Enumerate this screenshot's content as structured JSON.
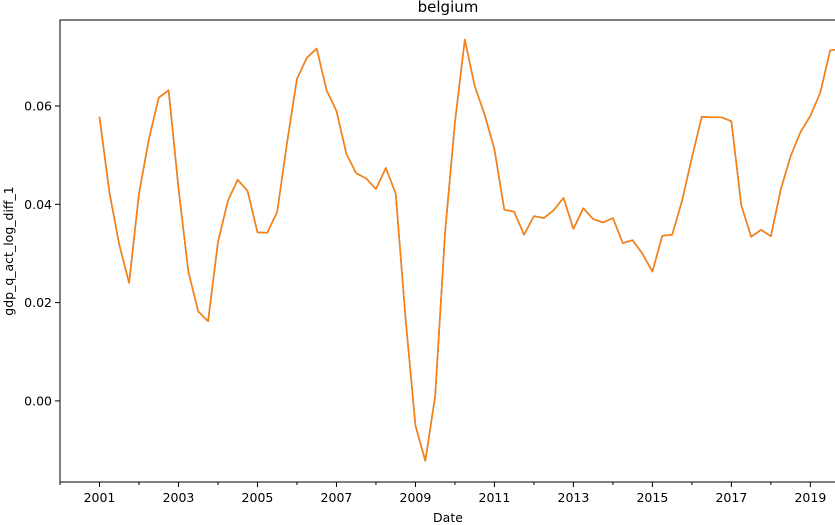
{
  "chart_data": {
    "type": "line",
    "title": "belgium",
    "xlabel": "Date",
    "ylabel": "gdp_q_act_log_diff_1",
    "xlim": [
      2000.0,
      2019.75
    ],
    "ylim": [
      -0.0165,
      0.0775
    ],
    "x_major_ticks": [
      2001,
      2003,
      2005,
      2007,
      2009,
      2011,
      2013,
      2015,
      2017,
      2019
    ],
    "x_major_tick_labels": [
      "2001",
      "2003",
      "2005",
      "2007",
      "2009",
      "2011",
      "2013",
      "2015",
      "2017",
      "2019"
    ],
    "y_ticks": [
      0.0,
      0.02,
      0.04,
      0.06
    ],
    "y_tick_labels": [
      "0.00",
      "0.02",
      "0.04",
      "0.06"
    ],
    "grid": false,
    "legend": "none",
    "series": [
      {
        "color": "#ff7f0e",
        "underlay_color": "#1f77b4",
        "x": [
          2001.0,
          2001.25,
          2001.5,
          2001.75,
          2002.0,
          2002.25,
          2002.5,
          2002.75,
          2003.0,
          2003.25,
          2003.5,
          2003.75,
          2004.0,
          2004.25,
          2004.5,
          2004.75,
          2005.0,
          2005.25,
          2005.5,
          2005.75,
          2006.0,
          2006.25,
          2006.5,
          2006.75,
          2007.0,
          2007.25,
          2007.5,
          2007.75,
          2008.0,
          2008.25,
          2008.5,
          2008.75,
          2009.0,
          2009.25,
          2009.5,
          2009.75,
          2010.0,
          2010.25,
          2010.5,
          2010.75,
          2011.0,
          2011.25,
          2011.5,
          2011.75,
          2012.0,
          2012.25,
          2012.5,
          2012.75,
          2013.0,
          2013.25,
          2013.5,
          2013.75,
          2014.0,
          2014.25,
          2014.5,
          2014.75,
          2015.0,
          2015.25,
          2015.5,
          2015.75,
          2016.0,
          2016.25,
          2016.5,
          2016.75,
          2017.0,
          2017.25,
          2017.5,
          2017.75,
          2018.0,
          2018.25,
          2018.5,
          2018.75,
          2019.0,
          2019.25,
          2019.5,
          2019.75
        ],
        "values": [
          0.0578,
          0.0425,
          0.0318,
          0.024,
          0.0422,
          0.0532,
          0.0617,
          0.0632,
          0.0433,
          0.0263,
          0.0182,
          0.0162,
          0.0323,
          0.0407,
          0.045,
          0.0427,
          0.0343,
          0.0342,
          0.0385,
          0.0526,
          0.0655,
          0.0698,
          0.0717,
          0.0632,
          0.059,
          0.0503,
          0.0463,
          0.0453,
          0.0431,
          0.0474,
          0.0422,
          0.0167,
          -0.005,
          -0.0122,
          0.001,
          0.0342,
          0.0567,
          0.0735,
          0.0641,
          0.0583,
          0.0512,
          0.0389,
          0.0385,
          0.0338,
          0.0376,
          0.0372,
          0.0388,
          0.0413,
          0.035,
          0.0392,
          0.037,
          0.0363,
          0.0372,
          0.0321,
          0.0327,
          0.0299,
          0.0263,
          0.0336,
          0.0338,
          0.0407,
          0.0495,
          0.0578,
          0.0577,
          0.0577,
          0.0569,
          0.0398,
          0.0334,
          0.0348,
          0.0335,
          0.043,
          0.0498,
          0.0547,
          0.058,
          0.0627,
          0.0713,
          0.0716
        ]
      }
    ]
  }
}
